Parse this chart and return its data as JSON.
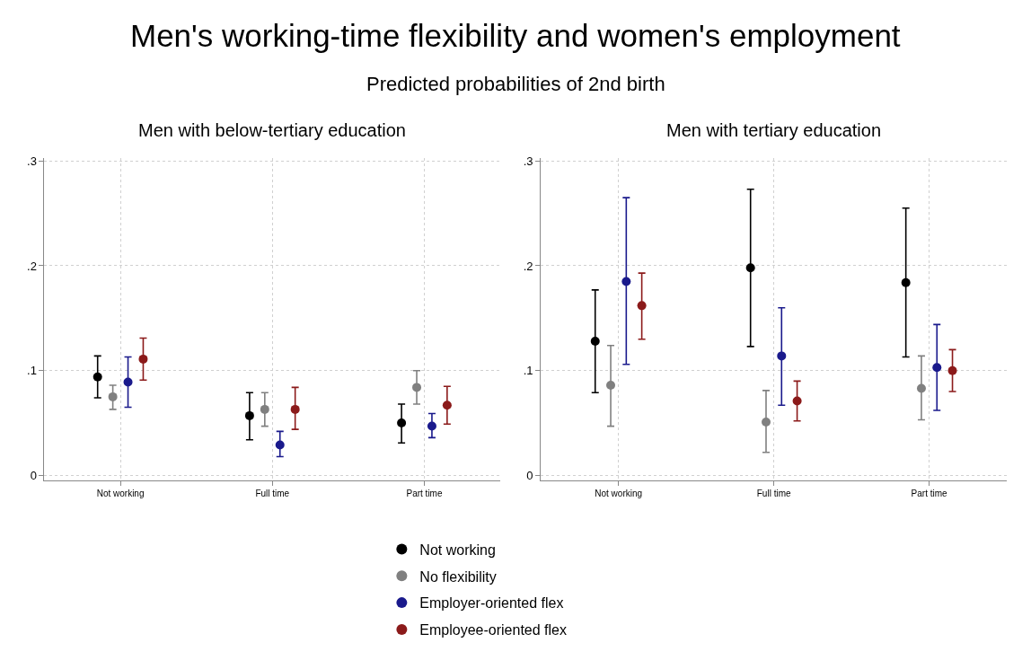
{
  "chart_data": [
    {
      "type": "scatter",
      "title": "Men with below-tertiary education",
      "annotations": [
        "Men's working-time flexibility and women's employment",
        "Predicted probabilities of 2nd birth"
      ],
      "categories": [
        "Not working",
        "Full time",
        "Part time"
      ],
      "ylim": [
        0,
        0.3
      ],
      "yticks": [
        0,
        {
          "value": 0.1,
          "label": ".1"
        },
        {
          "value": 0.2,
          "label": ".2"
        },
        {
          "value": 0.3,
          "label": ".3"
        }
      ],
      "grid": true,
      "legend": "bottom",
      "marker": "circle",
      "series": [
        {
          "name": "Not working",
          "color": "#000000",
          "values": [
            0.094,
            0.057,
            0.05
          ],
          "errors": [
            [
              0.074,
              0.114
            ],
            [
              0.034,
              0.079
            ],
            [
              0.031,
              0.068
            ]
          ]
        },
        {
          "name": "No flexibility",
          "color": "#808080",
          "values": [
            0.075,
            0.063,
            0.084
          ],
          "errors": [
            [
              0.063,
              0.086
            ],
            [
              0.047,
              0.079
            ],
            [
              0.068,
              0.1
            ]
          ]
        },
        {
          "name": "Employer-oriented flex",
          "color": "#1a1a8c",
          "values": [
            0.089,
            0.029,
            0.047
          ],
          "errors": [
            [
              0.065,
              0.113
            ],
            [
              0.018,
              0.042
            ],
            [
              0.036,
              0.059
            ]
          ]
        },
        {
          "name": "Employee-oriented flex",
          "color": "#8b1a1a",
          "values": [
            0.111,
            0.063,
            0.067
          ],
          "errors": [
            [
              0.091,
              0.131
            ],
            [
              0.044,
              0.084
            ],
            [
              0.049,
              0.085
            ]
          ]
        }
      ]
    },
    {
      "type": "scatter",
      "title": "Men with tertiary education",
      "categories": [
        "Not working",
        "Full time",
        "Part time"
      ],
      "ylim": [
        0,
        0.3
      ],
      "yticks": [
        0,
        {
          "value": 0.1,
          "label": ".1"
        },
        {
          "value": 0.2,
          "label": ".2"
        },
        {
          "value": 0.3,
          "label": ".3"
        }
      ],
      "grid": true,
      "legend": "bottom",
      "marker": "circle",
      "series": [
        {
          "color": "#000000",
          "values": [
            0.128,
            0.198,
            0.184
          ],
          "errors": [
            [
              0.079,
              0.177
            ],
            [
              0.123,
              0.273
            ],
            [
              0.113,
              0.255
            ]
          ]
        },
        {
          "color": "#808080",
          "values": [
            0.086,
            0.051,
            0.083
          ],
          "errors": [
            [
              0.047,
              0.124
            ],
            [
              0.022,
              0.081
            ],
            [
              0.053,
              0.114
            ]
          ]
        },
        {
          "color": "#1a1a8c",
          "values": [
            0.185,
            0.114,
            0.103
          ],
          "errors": [
            [
              0.106,
              0.265
            ],
            [
              0.067,
              0.16
            ],
            [
              0.062,
              0.144
            ]
          ]
        },
        {
          "color": "#8b1a1a",
          "values": [
            0.162,
            0.071,
            0.1
          ],
          "errors": [
            [
              0.13,
              0.193
            ],
            [
              0.052,
              0.09
            ],
            [
              0.08,
              0.12
            ]
          ]
        }
      ]
    }
  ]
}
